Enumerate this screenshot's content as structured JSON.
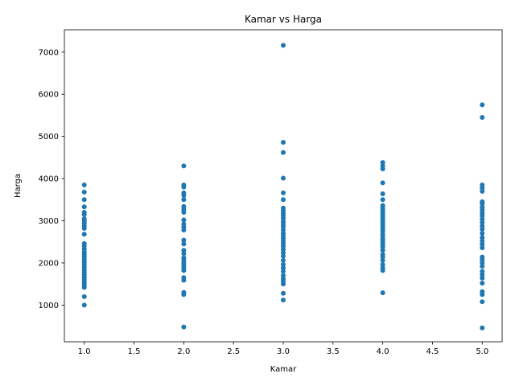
{
  "chart_data": {
    "type": "scatter",
    "title": "Kamar vs Harga",
    "xlabel": "Kamar",
    "ylabel": "Harga",
    "xlim": [
      0.8,
      5.2
    ],
    "ylim": [
      130,
      7530
    ],
    "xticks": [
      1.0,
      1.5,
      2.0,
      2.5,
      3.0,
      3.5,
      4.0,
      4.5,
      5.0
    ],
    "xtick_labels": [
      "1.0",
      "1.5",
      "2.0",
      "2.5",
      "3.0",
      "3.5",
      "4.0",
      "4.5",
      "5.0"
    ],
    "yticks": [
      1000,
      2000,
      3000,
      4000,
      5000,
      6000,
      7000
    ],
    "ytick_labels": [
      "1000",
      "2000",
      "3000",
      "4000",
      "5000",
      "6000",
      "7000"
    ],
    "grid": false,
    "marker_color": "#1f77b4",
    "points": [
      [
        1,
        1000
      ],
      [
        1,
        1200
      ],
      [
        1,
        1420
      ],
      [
        1,
        1480
      ],
      [
        1,
        1540
      ],
      [
        1,
        1600
      ],
      [
        1,
        1660
      ],
      [
        1,
        1720
      ],
      [
        1,
        1780
      ],
      [
        1,
        1840
      ],
      [
        1,
        1900
      ],
      [
        1,
        1960
      ],
      [
        1,
        2020
      ],
      [
        1,
        2080
      ],
      [
        1,
        2140
      ],
      [
        1,
        2200
      ],
      [
        1,
        2260
      ],
      [
        1,
        2330
      ],
      [
        1,
        2400
      ],
      [
        1,
        2460
      ],
      [
        1,
        2680
      ],
      [
        1,
        2820
      ],
      [
        1,
        2880
      ],
      [
        1,
        2940
      ],
      [
        1,
        3000
      ],
      [
        1,
        3050
      ],
      [
        1,
        3150
      ],
      [
        1,
        3200
      ],
      [
        1,
        3330
      ],
      [
        1,
        3500
      ],
      [
        1,
        3680
      ],
      [
        1,
        3850
      ],
      [
        2,
        480
      ],
      [
        2,
        1250
      ],
      [
        2,
        1300
      ],
      [
        2,
        1590
      ],
      [
        2,
        1650
      ],
      [
        2,
        1820
      ],
      [
        2,
        1880
      ],
      [
        2,
        1940
      ],
      [
        2,
        2000
      ],
      [
        2,
        2060
      ],
      [
        2,
        2120
      ],
      [
        2,
        2220
      ],
      [
        2,
        2300
      ],
      [
        2,
        2450
      ],
      [
        2,
        2540
      ],
      [
        2,
        2780
      ],
      [
        2,
        2850
      ],
      [
        2,
        2920
      ],
      [
        2,
        3020
      ],
      [
        2,
        3200
      ],
      [
        2,
        3270
      ],
      [
        2,
        3340
      ],
      [
        2,
        3500
      ],
      [
        2,
        3600
      ],
      [
        2,
        3660
      ],
      [
        2,
        3800
      ],
      [
        2,
        3850
      ],
      [
        2,
        4300
      ],
      [
        3,
        1120
      ],
      [
        3,
        1280
      ],
      [
        3,
        1500
      ],
      [
        3,
        1560
      ],
      [
        3,
        1620
      ],
      [
        3,
        1700
      ],
      [
        3,
        1800
      ],
      [
        3,
        1880
      ],
      [
        3,
        1960
      ],
      [
        3,
        2060
      ],
      [
        3,
        2160
      ],
      [
        3,
        2240
      ],
      [
        3,
        2320
      ],
      [
        3,
        2400
      ],
      [
        3,
        2460
      ],
      [
        3,
        2520
      ],
      [
        3,
        2580
      ],
      [
        3,
        2640
      ],
      [
        3,
        2700
      ],
      [
        3,
        2780
      ],
      [
        3,
        2860
      ],
      [
        3,
        2920
      ],
      [
        3,
        2980
      ],
      [
        3,
        3060
      ],
      [
        3,
        3120
      ],
      [
        3,
        3180
      ],
      [
        3,
        3240
      ],
      [
        3,
        3300
      ],
      [
        3,
        3500
      ],
      [
        3,
        3660
      ],
      [
        3,
        4010
      ],
      [
        3,
        4620
      ],
      [
        3,
        4860
      ],
      [
        3,
        7160
      ],
      [
        4,
        1290
      ],
      [
        4,
        1820
      ],
      [
        4,
        1880
      ],
      [
        4,
        1960
      ],
      [
        4,
        2060
      ],
      [
        4,
        2140
      ],
      [
        4,
        2200
      ],
      [
        4,
        2300
      ],
      [
        4,
        2380
      ],
      [
        4,
        2440
      ],
      [
        4,
        2500
      ],
      [
        4,
        2560
      ],
      [
        4,
        2620
      ],
      [
        4,
        2680
      ],
      [
        4,
        2760
      ],
      [
        4,
        2820
      ],
      [
        4,
        2880
      ],
      [
        4,
        2940
      ],
      [
        4,
        3000
      ],
      [
        4,
        3060
      ],
      [
        4,
        3120
      ],
      [
        4,
        3180
      ],
      [
        4,
        3240
      ],
      [
        4,
        3300
      ],
      [
        4,
        3360
      ],
      [
        4,
        3500
      ],
      [
        4,
        3640
      ],
      [
        4,
        3900
      ],
      [
        4,
        4230
      ],
      [
        4,
        4300
      ],
      [
        4,
        4380
      ],
      [
        5,
        460
      ],
      [
        5,
        1080
      ],
      [
        5,
        1250
      ],
      [
        5,
        1320
      ],
      [
        5,
        1520
      ],
      [
        5,
        1640
      ],
      [
        5,
        1720
      ],
      [
        5,
        1800
      ],
      [
        5,
        1920
      ],
      [
        5,
        2000
      ],
      [
        5,
        2080
      ],
      [
        5,
        2140
      ],
      [
        5,
        2360
      ],
      [
        5,
        2440
      ],
      [
        5,
        2520
      ],
      [
        5,
        2600
      ],
      [
        5,
        2700
      ],
      [
        5,
        2800
      ],
      [
        5,
        2880
      ],
      [
        5,
        2960
      ],
      [
        5,
        3040
      ],
      [
        5,
        3120
      ],
      [
        5,
        3180
      ],
      [
        5,
        3250
      ],
      [
        5,
        3320
      ],
      [
        5,
        3400
      ],
      [
        5,
        3450
      ],
      [
        5,
        3700
      ],
      [
        5,
        3780
      ],
      [
        5,
        3850
      ],
      [
        5,
        5450
      ],
      [
        5,
        5750
      ]
    ]
  }
}
